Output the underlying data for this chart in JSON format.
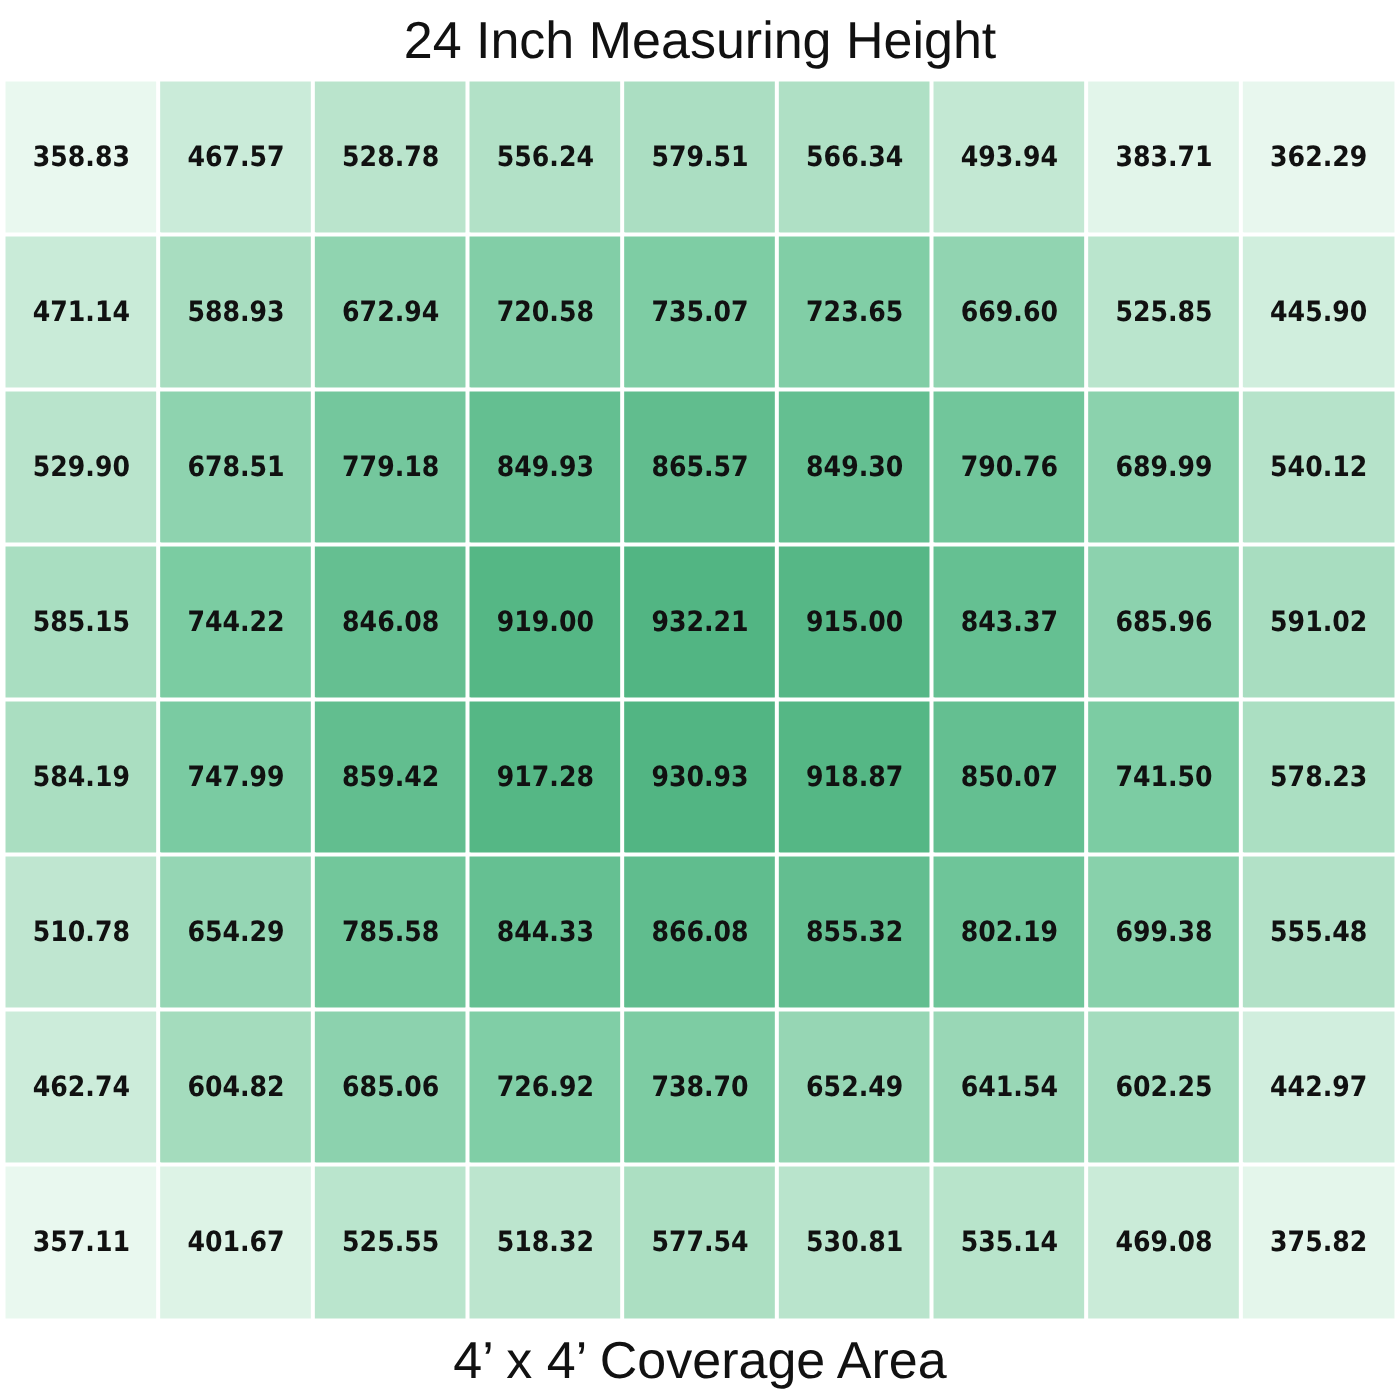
{
  "chart_data": {
    "type": "heatmap",
    "title": "24 Inch Measuring Height",
    "xlabel": "4’ x 4’ Coverage Area",
    "categories": [
      null,
      null,
      null,
      null,
      null,
      null,
      null,
      null,
      null
    ],
    "y_categories": [
      null,
      null,
      null,
      null,
      null,
      null,
      null,
      null
    ],
    "cells": [
      [
        358.83,
        467.57,
        528.78,
        556.24,
        579.51,
        566.34,
        493.94,
        383.71,
        362.29
      ],
      [
        471.14,
        588.93,
        672.94,
        720.58,
        735.07,
        723.65,
        669.6,
        525.85,
        445.9
      ],
      [
        529.9,
        678.51,
        779.18,
        849.93,
        865.57,
        849.3,
        790.76,
        689.99,
        540.12
      ],
      [
        585.15,
        744.22,
        846.08,
        919,
        932.21,
        915,
        843.37,
        685.96,
        591.02
      ],
      [
        584.19,
        747.99,
        859.42,
        917.28,
        930.93,
        918.87,
        850.07,
        741.5,
        578.23
      ],
      [
        510.78,
        654.29,
        785.58,
        844.33,
        866.08,
        855.32,
        802.19,
        699.38,
        555.48
      ],
      [
        462.74,
        604.82,
        685.06,
        726.92,
        738.7,
        652.49,
        641.54,
        602.25,
        442.97
      ],
      [
        357.11,
        401.67,
        525.55,
        518.32,
        577.54,
        530.81,
        535.14,
        469.08,
        375.82
      ]
    ],
    "cell_labels": [
      [
        "358.83",
        "467.57",
        "528.78",
        "556.24",
        "579.51",
        "566.34",
        "493.94",
        "383.71",
        "362.29"
      ],
      [
        "471.14",
        "588.93",
        "672.94",
        "720.58",
        "735.07",
        "723.65",
        "669.60",
        "525.85",
        "445.90"
      ],
      [
        "529.90",
        "678.51",
        "779.18",
        "849.93",
        "865.57",
        "849.30",
        "790.76",
        "689.99",
        "540.12"
      ],
      [
        "585.15",
        "744.22",
        "846.08",
        "919.00",
        "932.21",
        "915.00",
        "843.37",
        "685.96",
        "591.02"
      ],
      [
        "584.19",
        "747.99",
        "859.42",
        "917.28",
        "930.93",
        "918.87",
        "850.07",
        "741.50",
        "578.23"
      ],
      [
        "510.78",
        "654.29",
        "785.58",
        "844.33",
        "866.08",
        "855.32",
        "802.19",
        "699.38",
        "555.48"
      ],
      [
        "462.74",
        "604.82",
        "685.06",
        "726.92",
        "738.70",
        "652.49",
        "641.54",
        "602.25",
        "442.97"
      ],
      [
        "357.11",
        "401.67",
        "525.55",
        "518.32",
        "577.54",
        "530.81",
        "535.14",
        "469.08",
        "375.82"
      ]
    ]
  }
}
